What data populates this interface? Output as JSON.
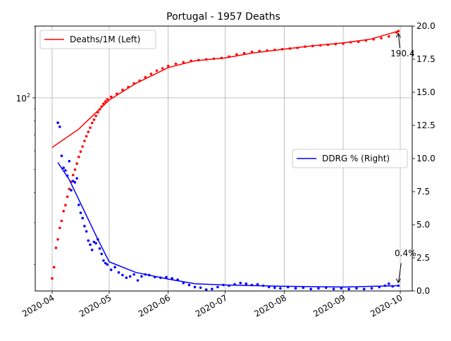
{
  "chart_data": {
    "type": "line",
    "title": "Portugal - 1957 Deaths",
    "grid": true,
    "x_axis": {
      "type": "date",
      "range": [
        "2020-04-01",
        "2020-10-01"
      ],
      "ticks": [
        {
          "date": "2020-04-01",
          "label": "2020-04"
        },
        {
          "date": "2020-05-01",
          "label": "2020-05"
        },
        {
          "date": "2020-06-01",
          "label": "2020-06"
        },
        {
          "date": "2020-07-01",
          "label": "2020-07"
        },
        {
          "date": "2020-08-01",
          "label": "2020-08"
        },
        {
          "date": "2020-09-01",
          "label": "2020-09"
        },
        {
          "date": "2020-10-01",
          "label": "2020-10"
        }
      ]
    },
    "y_left": {
      "scale": "log",
      "range": [
        15.5,
        200
      ],
      "ticks": [
        {
          "value": 100,
          "label": "10",
          "sup": "2"
        }
      ]
    },
    "y_right": {
      "scale": "linear",
      "range": [
        0,
        20
      ],
      "ticks": [
        {
          "value": 0,
          "label": "0.0"
        },
        {
          "value": 2.5,
          "label": "2.5"
        },
        {
          "value": 5,
          "label": "5.0"
        },
        {
          "value": 7.5,
          "label": "7.5"
        },
        {
          "value": 10,
          "label": "10.0"
        },
        {
          "value": 12.5,
          "label": "12.5"
        },
        {
          "value": 15,
          "label": "15.0"
        },
        {
          "value": 17.5,
          "label": "17.5"
        },
        {
          "value": 20,
          "label": "20.0"
        }
      ]
    },
    "series": [
      {
        "name": "Deaths/1M (Left)",
        "axis": "left",
        "color": "#ff0000",
        "legend_position": "upper-left",
        "line": [
          [
            "2020-04-01",
            62
          ],
          [
            "2020-04-15",
            74
          ],
          [
            "2020-05-01",
            98
          ],
          [
            "2020-05-15",
            115
          ],
          [
            "2020-06-01",
            134
          ],
          [
            "2020-06-15",
            143
          ],
          [
            "2020-07-01",
            147
          ],
          [
            "2020-07-15",
            154
          ],
          [
            "2020-08-01",
            160
          ],
          [
            "2020-08-15",
            165
          ],
          [
            "2020-09-01",
            170
          ],
          [
            "2020-09-15",
            176
          ],
          [
            "2020-09-30",
            190.4
          ]
        ],
        "points": [
          [
            "2020-04-01",
            17.5
          ],
          [
            "2020-04-02",
            19.5
          ],
          [
            "2020-04-03",
            23.5
          ],
          [
            "2020-04-04",
            25.5
          ],
          [
            "2020-04-05",
            28.5
          ],
          [
            "2020-04-06",
            30.5
          ],
          [
            "2020-04-07",
            33.5
          ],
          [
            "2020-04-08",
            35.5
          ],
          [
            "2020-04-09",
            38.5
          ],
          [
            "2020-04-10",
            41.5
          ],
          [
            "2020-04-11",
            44.5
          ],
          [
            "2020-04-12",
            47.5
          ],
          [
            "2020-04-13",
            50
          ],
          [
            "2020-04-14",
            53
          ],
          [
            "2020-04-15",
            56.5
          ],
          [
            "2020-04-16",
            59.5
          ],
          [
            "2020-04-17",
            62.5
          ],
          [
            "2020-04-18",
            66
          ],
          [
            "2020-04-19",
            69
          ],
          [
            "2020-04-20",
            72
          ],
          [
            "2020-04-21",
            75
          ],
          [
            "2020-04-22",
            78.5
          ],
          [
            "2020-04-23",
            81
          ],
          [
            "2020-04-24",
            84
          ],
          [
            "2020-04-25",
            87
          ],
          [
            "2020-04-26",
            89.5
          ],
          [
            "2020-04-27",
            92
          ],
          [
            "2020-04-28",
            94.5
          ],
          [
            "2020-04-29",
            96.5
          ],
          [
            "2020-04-30",
            98.5
          ],
          [
            "2020-05-02",
            101
          ],
          [
            "2020-05-05",
            104
          ],
          [
            "2020-05-08",
            108
          ],
          [
            "2020-05-11",
            111
          ],
          [
            "2020-05-14",
            115
          ],
          [
            "2020-05-17",
            118
          ],
          [
            "2020-05-20",
            122
          ],
          [
            "2020-05-23",
            126
          ],
          [
            "2020-05-26",
            130
          ],
          [
            "2020-05-29",
            133
          ],
          [
            "2020-06-01",
            136
          ],
          [
            "2020-06-05",
            139
          ],
          [
            "2020-06-09",
            141
          ],
          [
            "2020-06-13",
            143
          ],
          [
            "2020-06-17",
            144
          ],
          [
            "2020-06-21",
            145
          ],
          [
            "2020-06-25",
            146
          ],
          [
            "2020-06-29",
            147
          ],
          [
            "2020-07-03",
            149
          ],
          [
            "2020-07-07",
            152
          ],
          [
            "2020-07-11",
            154
          ],
          [
            "2020-07-15",
            156
          ],
          [
            "2020-07-19",
            157
          ],
          [
            "2020-07-23",
            158
          ],
          [
            "2020-07-27",
            159
          ],
          [
            "2020-07-31",
            160
          ],
          [
            "2020-08-04",
            161
          ],
          [
            "2020-08-08",
            162
          ],
          [
            "2020-08-12",
            164
          ],
          [
            "2020-08-16",
            165
          ],
          [
            "2020-08-20",
            166
          ],
          [
            "2020-08-24",
            167
          ],
          [
            "2020-08-28",
            168
          ],
          [
            "2020-09-01",
            169
          ],
          [
            "2020-09-05",
            171
          ],
          [
            "2020-09-09",
            172
          ],
          [
            "2020-09-13",
            174
          ],
          [
            "2020-09-17",
            176
          ],
          [
            "2020-09-21",
            178
          ],
          [
            "2020-09-25",
            181
          ],
          [
            "2020-09-29",
            188
          ],
          [
            "2020-09-30",
            190.4
          ]
        ]
      },
      {
        "name": "DDRG % (Right)",
        "axis": "right",
        "color": "#0000ff",
        "legend_position": "center-right",
        "line": [
          [
            "2020-04-04",
            9.7
          ],
          [
            "2020-04-10",
            8.4
          ],
          [
            "2020-04-17",
            6.3
          ],
          [
            "2020-04-25",
            3.9
          ],
          [
            "2020-05-01",
            2.2
          ],
          [
            "2020-05-15",
            1.4
          ],
          [
            "2020-06-01",
            0.9
          ],
          [
            "2020-06-15",
            0.55
          ],
          [
            "2020-07-01",
            0.45
          ],
          [
            "2020-08-01",
            0.35
          ],
          [
            "2020-09-01",
            0.3
          ],
          [
            "2020-09-30",
            0.4
          ]
        ],
        "points": [
          [
            "2020-04-04",
            12.7
          ],
          [
            "2020-04-05",
            12.4
          ],
          [
            "2020-04-06",
            10.2
          ],
          [
            "2020-04-07",
            9.3
          ],
          [
            "2020-04-08",
            9.1
          ],
          [
            "2020-04-09",
            8.7
          ],
          [
            "2020-04-10",
            9.8
          ],
          [
            "2020-04-11",
            7.6
          ],
          [
            "2020-04-12",
            8.3
          ],
          [
            "2020-04-13",
            8.2
          ],
          [
            "2020-04-14",
            8.5
          ],
          [
            "2020-04-15",
            6.5
          ],
          [
            "2020-04-16",
            5.9
          ],
          [
            "2020-04-17",
            5.5
          ],
          [
            "2020-04-18",
            4.9
          ],
          [
            "2020-04-19",
            4.5
          ],
          [
            "2020-04-20",
            3.8
          ],
          [
            "2020-04-21",
            3.5
          ],
          [
            "2020-04-22",
            3.1
          ],
          [
            "2020-04-23",
            3.7
          ],
          [
            "2020-04-24",
            3.6
          ],
          [
            "2020-04-25",
            3.9
          ],
          [
            "2020-04-26",
            3.2
          ],
          [
            "2020-04-27",
            2.8
          ],
          [
            "2020-04-28",
            2.3
          ],
          [
            "2020-04-29",
            2.1
          ],
          [
            "2020-04-30",
            2.0
          ],
          [
            "2020-05-02",
            1.6
          ],
          [
            "2020-05-04",
            1.8
          ],
          [
            "2020-05-06",
            1.4
          ],
          [
            "2020-05-08",
            1.2
          ],
          [
            "2020-05-10",
            1.0
          ],
          [
            "2020-05-12",
            1.1
          ],
          [
            "2020-05-14",
            1.25
          ],
          [
            "2020-05-16",
            0.8
          ],
          [
            "2020-05-18",
            1.1
          ],
          [
            "2020-05-20",
            1.25
          ],
          [
            "2020-05-22",
            1.2
          ],
          [
            "2020-05-25",
            1.05
          ],
          [
            "2020-05-28",
            1.0
          ],
          [
            "2020-05-31",
            1.05
          ],
          [
            "2020-06-03",
            0.95
          ],
          [
            "2020-06-06",
            0.85
          ],
          [
            "2020-06-09",
            0.6
          ],
          [
            "2020-06-12",
            0.45
          ],
          [
            "2020-06-15",
            0.3
          ],
          [
            "2020-06-18",
            0.25
          ],
          [
            "2020-06-21",
            0.1
          ],
          [
            "2020-06-24",
            0.15
          ],
          [
            "2020-06-27",
            0.3
          ],
          [
            "2020-06-30",
            0.45
          ],
          [
            "2020-07-03",
            0.4
          ],
          [
            "2020-07-06",
            0.5
          ],
          [
            "2020-07-09",
            0.6
          ],
          [
            "2020-07-12",
            0.55
          ],
          [
            "2020-07-15",
            0.45
          ],
          [
            "2020-07-18",
            0.5
          ],
          [
            "2020-07-21",
            0.4
          ],
          [
            "2020-07-24",
            0.3
          ],
          [
            "2020-07-27",
            0.25
          ],
          [
            "2020-07-30",
            0.2
          ],
          [
            "2020-08-03",
            0.3
          ],
          [
            "2020-08-07",
            0.2
          ],
          [
            "2020-08-11",
            0.25
          ],
          [
            "2020-08-15",
            0.15
          ],
          [
            "2020-08-19",
            0.2
          ],
          [
            "2020-08-23",
            0.25
          ],
          [
            "2020-08-27",
            0.15
          ],
          [
            "2020-08-31",
            0.2
          ],
          [
            "2020-09-04",
            0.15
          ],
          [
            "2020-09-08",
            0.2
          ],
          [
            "2020-09-12",
            0.15
          ],
          [
            "2020-09-16",
            0.2
          ],
          [
            "2020-09-20",
            0.3
          ],
          [
            "2020-09-23",
            0.4
          ],
          [
            "2020-09-25",
            0.55
          ],
          [
            "2020-09-27",
            0.35
          ],
          [
            "2020-09-30",
            0.4
          ]
        ]
      }
    ],
    "annotations": [
      {
        "text": "190.4",
        "axis": "left",
        "date": "2020-09-30",
        "value": 190.4,
        "color": "#000000"
      },
      {
        "text": "0.4%",
        "axis": "right",
        "date": "2020-09-30",
        "value": 0.4,
        "color": "#000000"
      }
    ]
  }
}
